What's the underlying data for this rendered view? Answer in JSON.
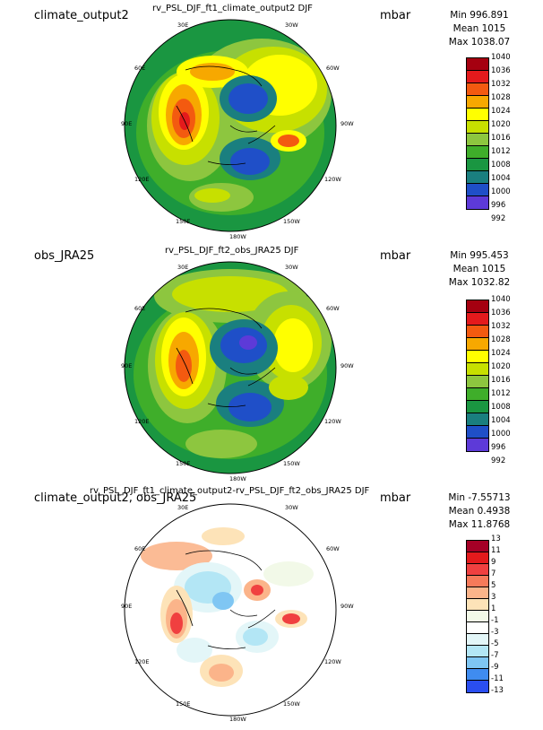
{
  "panels": [
    {
      "id": "model",
      "left_label": "climate_output2",
      "title": "rv_PSL_DJF_ft1_climate_output2  DJF",
      "units": "mbar",
      "stats": {
        "min": "Min 996.891",
        "mean": "Mean 1015",
        "max": "Max 1038.07"
      },
      "colorbar": {
        "labels": [
          "1040",
          "1036",
          "1032",
          "1028",
          "1024",
          "1020",
          "1016",
          "1012",
          "1008",
          "1004",
          "1000",
          "996",
          "992"
        ],
        "colors": [
          "#a50010",
          "#e41a1c",
          "#f35a10",
          "#f7a800",
          "#ffff00",
          "#c7e000",
          "#8dc63f",
          "#3fae2a",
          "#1a9641",
          "#1a7f7f",
          "#1f4fc8",
          "#5d3ad8",
          "#9b30ff"
        ]
      }
    },
    {
      "id": "obs",
      "left_label": "obs_JRA25",
      "title": "rv_PSL_DJF_ft2_obs_JRA25  DJF",
      "units": "mbar",
      "stats": {
        "min": "Min 995.453",
        "mean": "Mean 1015",
        "max": "Max 1032.82"
      },
      "colorbar": {
        "labels": [
          "1040",
          "1036",
          "1032",
          "1028",
          "1024",
          "1020",
          "1016",
          "1012",
          "1008",
          "1004",
          "1000",
          "996",
          "992"
        ],
        "colors": [
          "#a50010",
          "#e41a1c",
          "#f35a10",
          "#f7a800",
          "#ffff00",
          "#c7e000",
          "#8dc63f",
          "#3fae2a",
          "#1a9641",
          "#1a7f7f",
          "#1f4fc8",
          "#5d3ad8",
          "#9b30ff"
        ]
      }
    },
    {
      "id": "diff",
      "left_label": "climate_output2, obs_JRA25",
      "title": "rv_PSL_DJF_ft1_climate_output2-rv_PSL_DJF_ft2_obs_JRA25  DJF",
      "units": "mbar",
      "stats": {
        "min": "Min -7.55713",
        "mean": "Mean 0.4938",
        "max": "Max 11.8768"
      },
      "colorbar": {
        "labels": [
          "13",
          "11",
          "9",
          "7",
          "5",
          "3",
          "1",
          "-1",
          "-3",
          "-5",
          "-7",
          "-9",
          "-11",
          "-13"
        ],
        "colors": [
          "#a50026",
          "#e31a1c",
          "#f04040",
          "#f67a5a",
          "#fbb48a",
          "#fde3b8",
          "#f2f9e8",
          "#ffffff",
          "#e3f6f8",
          "#b3e6f5",
          "#7fc6f3",
          "#3f8cf0",
          "#2a4ef0",
          "#1010c8"
        ]
      }
    }
  ],
  "longitudes": [
    "30E",
    "30W",
    "60E",
    "60W",
    "90E",
    "90W",
    "120E",
    "120W",
    "150E",
    "150W",
    "180W"
  ]
}
